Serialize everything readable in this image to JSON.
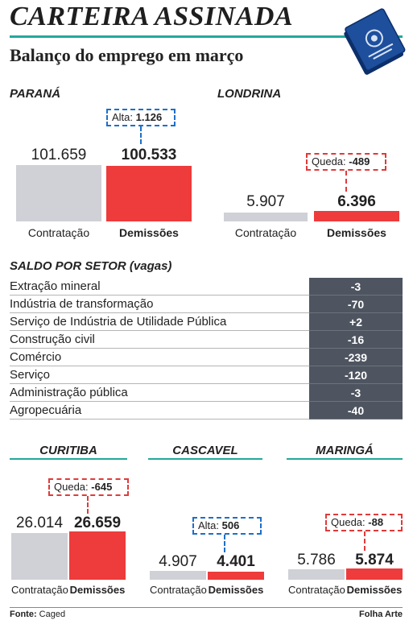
{
  "header": {
    "title": "CARTEIRA ASSINADA",
    "subtitle": "Balanço do emprego em março"
  },
  "chart_data": [
    {
      "type": "bar",
      "region": "PARANÁ",
      "categories": [
        "Contratação",
        "Demissões"
      ],
      "values": [
        101659,
        100533
      ],
      "value_labels": [
        "101.659",
        "100.533"
      ],
      "badge": {
        "label": "Alta:",
        "value": "1.126",
        "color": "#1e6fc9"
      }
    },
    {
      "type": "bar",
      "region": "LONDRINA",
      "categories": [
        "Contratação",
        "Demissões"
      ],
      "values": [
        5907,
        6396
      ],
      "value_labels": [
        "5.907",
        "6.396"
      ],
      "badge": {
        "label": "Queda:",
        "value": "-489",
        "color": "#e03a3a"
      }
    },
    {
      "type": "table",
      "title": "SALDO POR SETOR (vagas)",
      "rows": [
        {
          "sector": "Extração mineral",
          "value": "-3"
        },
        {
          "sector": "Indústria de transformação",
          "value": "-70"
        },
        {
          "sector": "Serviço de Indústria de Utilidade Pública",
          "value": "+2"
        },
        {
          "sector": "Construção civil",
          "value": "-16"
        },
        {
          "sector": "Comércio",
          "value": "-239"
        },
        {
          "sector": "Serviço",
          "value": "-120"
        },
        {
          "sector": "Administração pública",
          "value": "-3"
        },
        {
          "sector": "Agropecuária",
          "value": "-40"
        }
      ]
    },
    {
      "type": "bar",
      "region": "CURITIBA",
      "categories": [
        "Contratação",
        "Demissões"
      ],
      "values": [
        26014,
        26659
      ],
      "value_labels": [
        "26.014",
        "26.659"
      ],
      "badge": {
        "label": "Queda:",
        "value": "-645",
        "color": "#e03a3a"
      }
    },
    {
      "type": "bar",
      "region": "CASCAVEL",
      "categories": [
        "Contratação",
        "Demissões"
      ],
      "values": [
        4907,
        4401
      ],
      "value_labels": [
        "4.907",
        "4.401"
      ],
      "badge": {
        "label": "Alta:",
        "value": "506",
        "color": "#1e6fc9"
      }
    },
    {
      "type": "bar",
      "region": "MARINGÁ",
      "categories": [
        "Contratação",
        "Demissões"
      ],
      "values": [
        5786,
        5874
      ],
      "value_labels": [
        "5.786",
        "5.874"
      ],
      "badge": {
        "label": "Queda:",
        "value": "-88",
        "color": "#e03a3a"
      }
    }
  ],
  "colors": {
    "contratacao": "#cfd1d6",
    "demissoes": "#ee3b3b",
    "accent": "#23a89a",
    "table_value_bg": "#4e5560"
  },
  "footer": {
    "source_label": "Fonte:",
    "source": "Caged",
    "credit": "Folha Arte"
  },
  "icons": {
    "logo": "work-card-icon"
  }
}
